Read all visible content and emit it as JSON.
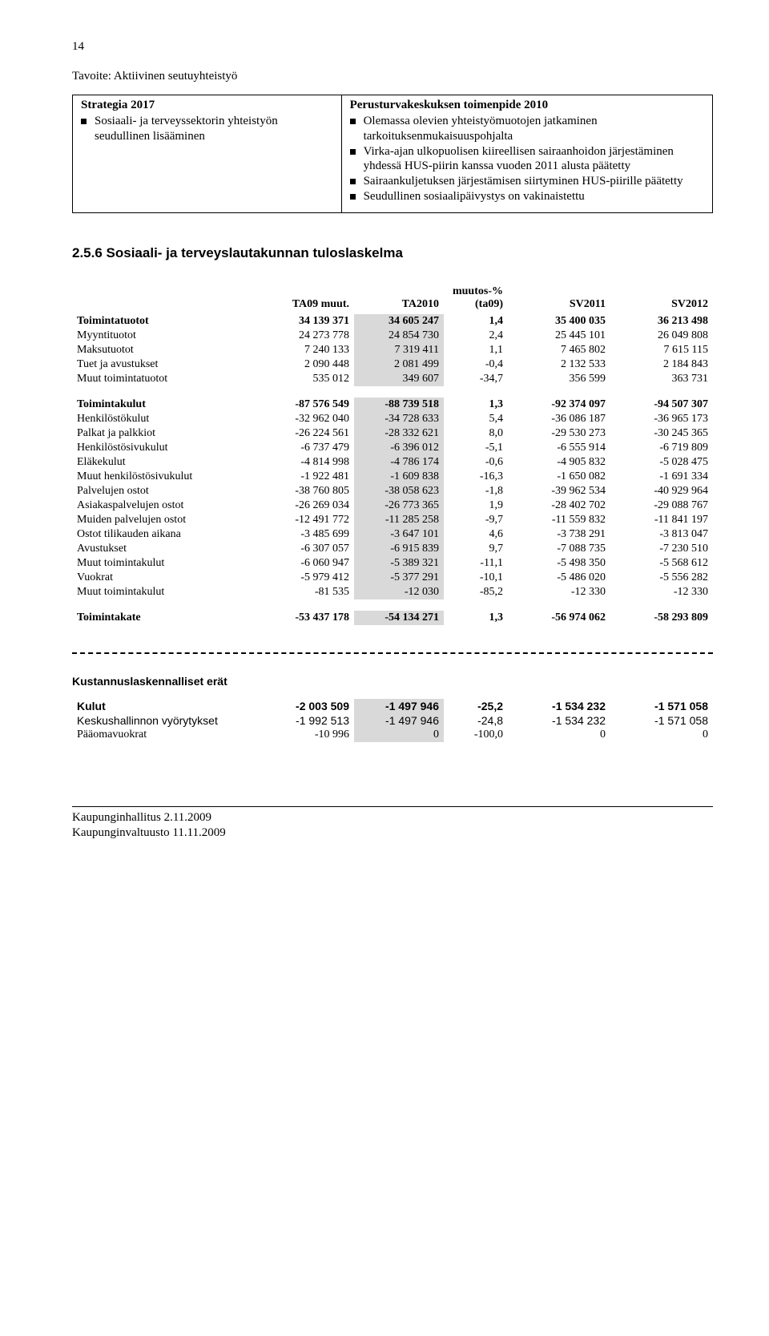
{
  "page_number": "14",
  "heading": "Tavoite: Aktiivinen seutuyhteistyö",
  "strategy": {
    "left_header": "Strategia 2017",
    "left_items": [
      "Sosiaali- ja terveyssektorin yhteistyön seudullinen lisääminen"
    ],
    "right_header": "Perusturvakeskuksen toimenpide 2010",
    "right_items": [
      "Olemassa olevien yhteistyömuotojen jatkaminen tarkoituksenmukaisuuspohjalta",
      "Virka-ajan ulkopuolisen kiireellisen sairaanhoidon järjestäminen yhdessä HUS-piirin kanssa vuoden 2011 alusta päätetty",
      "Sairaankuljetuksen järjestämisen siirtyminen HUS-piirille päätetty",
      "Seudullinen sosiaalipäivystys on vakinaistettu"
    ]
  },
  "section_title": "2.5.6 Sosiaali- ja terveyslautakunnan tuloslaskelma",
  "fin": {
    "col_widths": [
      "30%",
      "14%",
      "14%",
      "10%",
      "16%",
      "16%"
    ],
    "shaded_bg": "#d9d9d9",
    "headers": [
      "",
      "TA09 muut.",
      "TA2010",
      "muutos-% (ta09)",
      "SV2011",
      "SV2012"
    ],
    "groups": [
      {
        "bold": true,
        "rows": [
          {
            "label": "Toimintatuotot",
            "ind": 0,
            "cells": [
              "34 139 371",
              "34 605 247",
              "1,4",
              "35 400 035",
              "36 213 498"
            ]
          }
        ]
      },
      {
        "rows": [
          {
            "label": "Myyntituotot",
            "ind": 1,
            "cells": [
              "24 273 778",
              "24 854 730",
              "2,4",
              "25 445 101",
              "26 049 808"
            ]
          },
          {
            "label": "Maksutuotot",
            "ind": 1,
            "cells": [
              "7 240 133",
              "7 319 411",
              "1,1",
              "7 465 802",
              "7 615 115"
            ]
          },
          {
            "label": "Tuet ja avustukset",
            "ind": 1,
            "cells": [
              "2 090 448",
              "2 081 499",
              "-0,4",
              "2 132 533",
              "2 184 843"
            ]
          },
          {
            "label": "Muut toimintatuotot",
            "ind": 1,
            "cells": [
              "535 012",
              "349 607",
              "-34,7",
              "356 599",
              "363 731"
            ]
          }
        ]
      },
      {
        "spacer": true
      },
      {
        "bold": true,
        "rows": [
          {
            "label": "Toimintakulut",
            "ind": 0,
            "cells": [
              "-87 576 549",
              "-88 739 518",
              "1,3",
              "-92 374 097",
              "-94 507 307"
            ]
          }
        ]
      },
      {
        "rows": [
          {
            "label": "Henkilöstökulut",
            "ind": 1,
            "cells": [
              "-32 962 040",
              "-34 728 633",
              "5,4",
              "-36 086 187",
              "-36 965 173"
            ]
          },
          {
            "label": "Palkat ja palkkiot",
            "ind": 2,
            "cells": [
              "-26 224 561",
              "-28 332 621",
              "8,0",
              "-29 530 273",
              "-30 245 365"
            ]
          },
          {
            "label": "Henkilöstösivukulut",
            "ind": 2,
            "cells": [
              "-6 737 479",
              "-6 396 012",
              "-5,1",
              "-6 555 914",
              "-6 719 809"
            ]
          },
          {
            "label": "Eläkekulut",
            "ind": 3,
            "cells": [
              "-4 814 998",
              "-4 786 174",
              "-0,6",
              "-4 905 832",
              "-5 028 475"
            ]
          },
          {
            "label": "Muut henkilöstösivukulut",
            "ind": 3,
            "cells": [
              "-1 922 481",
              "-1 609 838",
              "-16,3",
              "-1 650 082",
              "-1 691 334"
            ]
          },
          {
            "label": "Palvelujen ostot",
            "ind": 1,
            "cells": [
              "-38 760 805",
              "-38 058 623",
              "-1,8",
              "-39 962 534",
              "-40 929 964"
            ]
          },
          {
            "label": "Asiakaspalvelujen ostot",
            "ind": 2,
            "cells": [
              "-26 269 034",
              "-26 773 365",
              "1,9",
              "-28 402 702",
              "-29 088 767"
            ]
          },
          {
            "label": "Muiden palvelujen ostot",
            "ind": 2,
            "cells": [
              "-12 491 772",
              "-11 285 258",
              "-9,7",
              "-11 559 832",
              "-11 841 197"
            ]
          },
          {
            "label": "Ostot tilikauden aikana",
            "ind": 1,
            "cells": [
              "-3 485 699",
              "-3 647 101",
              "4,6",
              "-3 738 291",
              "-3 813 047"
            ]
          },
          {
            "label": "Avustukset",
            "ind": 1,
            "cells": [
              "-6 307 057",
              "-6 915 839",
              "9,7",
              "-7 088 735",
              "-7 230 510"
            ]
          },
          {
            "label": "Muut toimintakulut",
            "ind": 1,
            "cells": [
              "-6 060 947",
              "-5 389 321",
              "-11,1",
              "-5 498 350",
              "-5 568 612"
            ]
          },
          {
            "label": "Vuokrat",
            "ind": 2,
            "cells": [
              "-5 979 412",
              "-5 377 291",
              "-10,1",
              "-5 486 020",
              "-5 556 282"
            ]
          },
          {
            "label": "Muut toimintakulut",
            "ind": 2,
            "cells": [
              "-81 535",
              "-12 030",
              "-85,2",
              "-12 330",
              "-12 330"
            ]
          }
        ]
      },
      {
        "spacer": true
      },
      {
        "bold": true,
        "rows": [
          {
            "label": "Toimintakate",
            "ind": 0,
            "cells": [
              "-53 437 178",
              "-54 134 271",
              "1,3",
              "-56 974 062",
              "-58 293 809"
            ]
          }
        ]
      }
    ]
  },
  "kust": {
    "title": "Kustannuslaskennalliset erät",
    "rows": [
      {
        "label": "Kulut",
        "bold": true,
        "arial": true,
        "cells": [
          "-2 003 509",
          "-1 497 946",
          "-25,2",
          "-1 534 232",
          "-1 571 058"
        ]
      },
      {
        "label": "Keskushallinnon vyörytykset",
        "arial": true,
        "cells": [
          "-1 992 513",
          "-1 497 946",
          "-24,8",
          "-1 534 232",
          "-1 571 058"
        ]
      },
      {
        "label": "Pääomavuokrat",
        "cells": [
          "-10 996",
          "0",
          "-100,0",
          "0",
          "0"
        ]
      }
    ]
  },
  "footer": {
    "line1": "Kaupunginhallitus 2.11.2009",
    "line2": "Kaupunginvaltuusto 11.11.2009"
  }
}
